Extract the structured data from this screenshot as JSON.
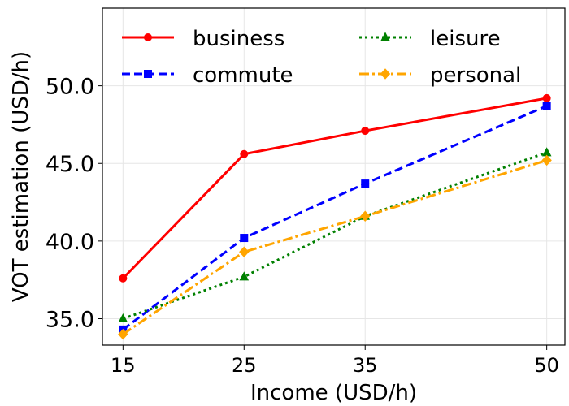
{
  "chart_data": {
    "type": "line",
    "xlabel": "Income (USD/h)",
    "ylabel": "VOT estimation (USD/h)",
    "x": [
      15,
      25,
      35,
      50
    ],
    "x_tick_labels": [
      "15",
      "25",
      "35",
      "50"
    ],
    "y_ticks": [
      35.0,
      40.0,
      45.0,
      50.0
    ],
    "y_tick_labels": [
      "35.0",
      "40.0",
      "45.0",
      "50.0"
    ],
    "xlim": [
      13.3,
      51.5
    ],
    "ylim": [
      33.3,
      55.0
    ],
    "grid": true,
    "legend_placement": "top",
    "series": [
      {
        "name": "business",
        "color": "#ff0000",
        "dash": "solid",
        "marker": "circle",
        "values": [
          37.6,
          45.6,
          47.1,
          49.2
        ]
      },
      {
        "name": "commute",
        "color": "#0000ff",
        "dash": "dashed",
        "marker": "square",
        "values": [
          34.3,
          40.2,
          43.7,
          48.7
        ]
      },
      {
        "name": "leisure",
        "color": "#008000",
        "dash": "dotted",
        "marker": "triangle",
        "values": [
          35.0,
          37.7,
          41.6,
          45.7
        ]
      },
      {
        "name": "personal",
        "color": "#ffa500",
        "dash": "dashdot",
        "marker": "diamond",
        "values": [
          34.0,
          39.3,
          41.6,
          45.2
        ]
      }
    ]
  }
}
